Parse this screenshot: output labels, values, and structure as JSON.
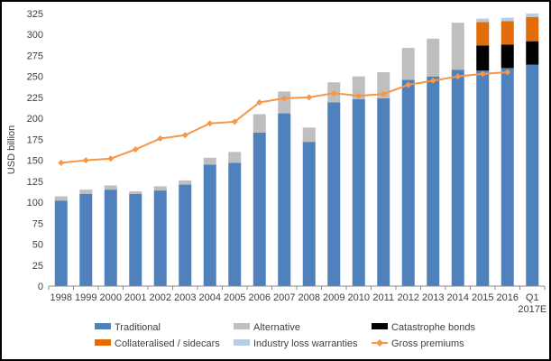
{
  "window": {
    "background": "#ffffff",
    "border_color": "#000000"
  },
  "colors": {
    "axis_line": "#898989",
    "tick_text": "#404040",
    "traditional_blue": "#4F81BD",
    "alternative_gray": "#BFBFBF",
    "cat_bond_black": "#000000",
    "collateralised_orange": "#E36C0A",
    "ilw_light_blue": "#B9CDE5",
    "gross_premiums_line": "#F79646"
  },
  "chart_data": {
    "type": "bar",
    "subtype": "stacked-column-with-line-overlay",
    "title": "",
    "xlabel": "",
    "ylabel": "USD billion",
    "ylim": [
      0,
      325
    ],
    "y_ticks": [
      0,
      25,
      50,
      75,
      100,
      125,
      150,
      175,
      200,
      225,
      250,
      275,
      300,
      325
    ],
    "grid": "off",
    "legend_position": "bottom",
    "categories": [
      "1998",
      "1999",
      "2000",
      "2001",
      "2002",
      "2003",
      "2004",
      "2005",
      "2006",
      "2007",
      "2008",
      "2009",
      "2010",
      "2011",
      "2012",
      "2013",
      "2014",
      "2015",
      "2016",
      "Q1 2017E"
    ],
    "series": [
      {
        "name": "Traditional",
        "kind": "bar",
        "color": "#4F81BD",
        "values": [
          102,
          110,
          115,
          110,
          114,
          121,
          145,
          147,
          183,
          206,
          172,
          219,
          223,
          224,
          246,
          250,
          258,
          257,
          260,
          264
        ]
      },
      {
        "name": "Alternative",
        "kind": "bar",
        "color": "#BFBFBF",
        "values": [
          5,
          5,
          5,
          3,
          5,
          5,
          8,
          13,
          22,
          26,
          17,
          24,
          27,
          31,
          38,
          45,
          56,
          0,
          0,
          0
        ]
      },
      {
        "name": "Catastrophe bonds",
        "kind": "bar",
        "color": "#000000",
        "values": [
          0,
          0,
          0,
          0,
          0,
          0,
          0,
          0,
          0,
          0,
          0,
          0,
          0,
          0,
          0,
          0,
          0,
          30,
          28,
          28
        ]
      },
      {
        "name": "Collateralised / sidecars",
        "kind": "bar",
        "color": "#E36C0A",
        "values": [
          0,
          0,
          0,
          0,
          0,
          0,
          0,
          0,
          0,
          0,
          0,
          0,
          0,
          0,
          0,
          0,
          0,
          28,
          28,
          29
        ]
      },
      {
        "name": "Industry loss warranties",
        "kind": "bar",
        "color": "#B9CDE5",
        "values": [
          0,
          0,
          0,
          0,
          0,
          0,
          0,
          0,
          0,
          0,
          0,
          0,
          0,
          0,
          0,
          0,
          0,
          4,
          4,
          4
        ]
      },
      {
        "name": "Gross premiums",
        "kind": "line",
        "color": "#F79646",
        "marker": "diamond",
        "values": [
          147,
          150,
          152,
          163,
          176,
          180,
          194,
          196,
          219,
          224,
          225,
          230,
          227,
          229,
          240,
          245,
          250,
          253,
          255,
          null
        ]
      }
    ]
  }
}
